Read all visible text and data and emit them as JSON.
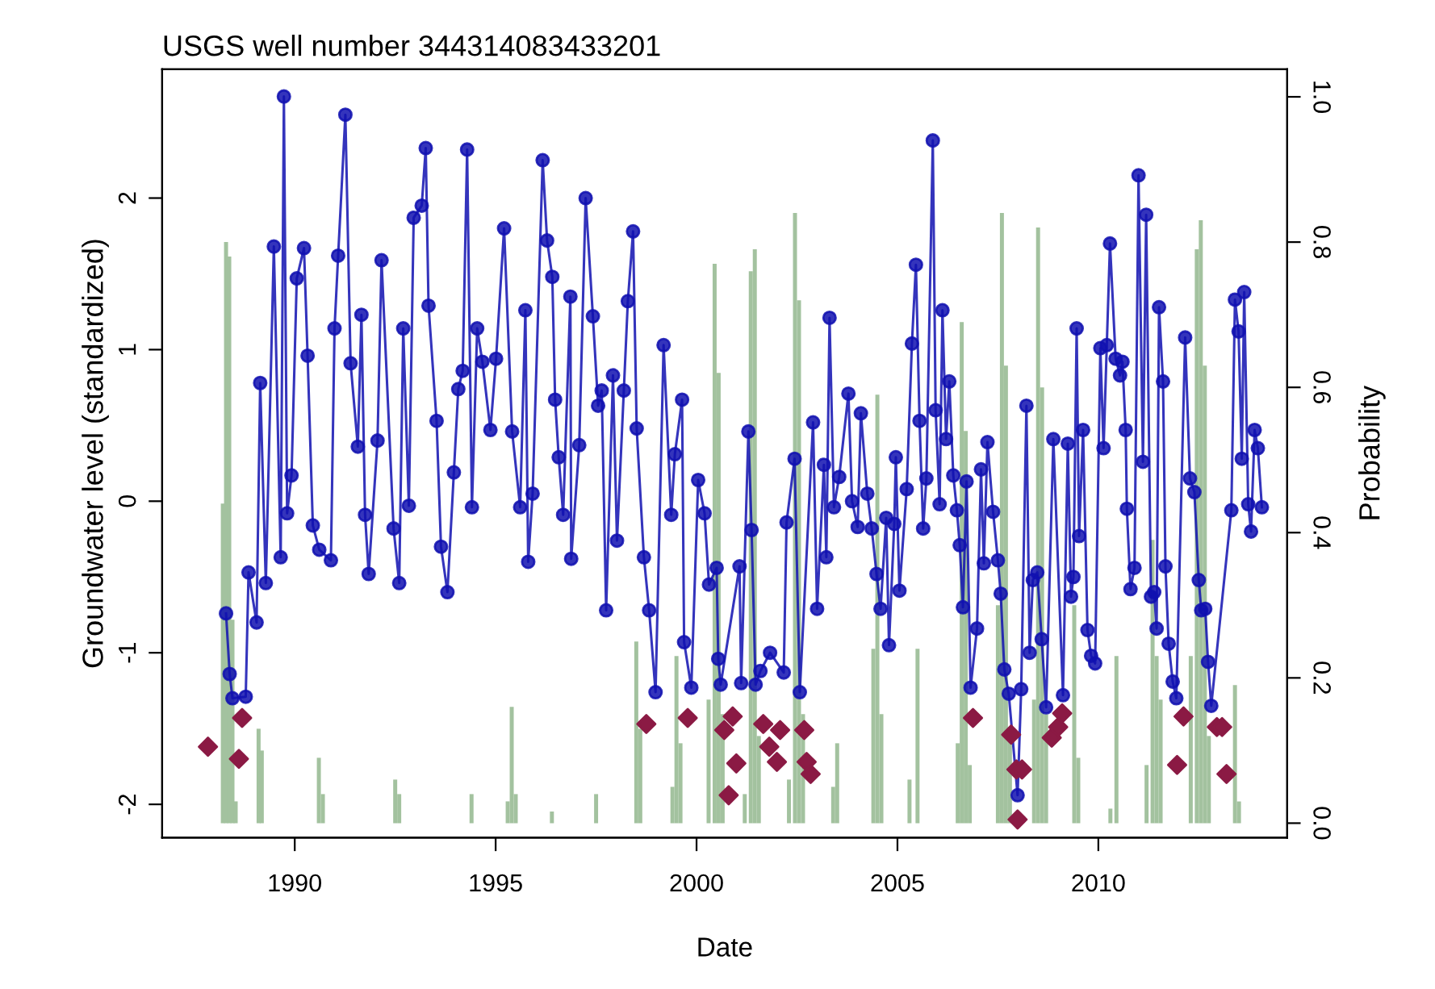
{
  "chart_data": {
    "type": "line",
    "title": "USGS well number 344314083433201",
    "xlabel": "Date",
    "ylabel": "Groundwater level (standardized)",
    "y2label": "Probability",
    "xlim": [
      1986.7,
      2014.7
    ],
    "xticks": [
      1990,
      1995,
      2000,
      2005,
      2010
    ],
    "ylim": [
      -2.22,
      2.85
    ],
    "yticks": [
      -2,
      -1,
      0,
      1,
      2
    ],
    "y2lim": [
      -0.02,
      1.038
    ],
    "y2ticks": [
      {
        "value": 0,
        "label": "0.0"
      },
      0.2,
      0.4,
      0.6,
      0.8,
      {
        "value": 1,
        "label": "1.0"
      }
    ],
    "grid": false,
    "series": [
      {
        "type": "bar",
        "axis": "y2",
        "color": "#a3c29f",
        "x": [
          1988.21,
          1988.29,
          1988.37,
          1988.45,
          1988.53,
          1989.1,
          1989.18,
          1990.6,
          1990.7,
          1992.5,
          1992.6,
          1994.4,
          1995.3,
          1995.4,
          1995.5,
          1996.4,
          1997.5,
          1998.5,
          1998.6,
          1999.4,
          1999.5,
          1999.6,
          2000.3,
          2000.45,
          2000.55,
          2000.65,
          2001.2,
          2001.35,
          2001.45,
          2001.55,
          2002.3,
          2002.45,
          2002.55,
          2002.65,
          2003.4,
          2003.5,
          2004.4,
          2004.5,
          2004.6,
          2005.3,
          2005.5,
          2006.5,
          2006.6,
          2006.7,
          2006.8,
          2007.5,
          2007.6,
          2007.7,
          2007.8,
          2008.4,
          2008.5,
          2008.6,
          2008.7,
          2009.4,
          2009.5,
          2010.3,
          2010.45,
          2011.2,
          2011.35,
          2011.45,
          2011.55,
          2012.3,
          2012.45,
          2012.55,
          2012.65,
          2012.75,
          2013.4,
          2013.5
        ],
        "values": [
          0.44,
          0.8,
          0.78,
          0.28,
          0.03,
          0.13,
          0.1,
          0.09,
          0.04,
          0.06,
          0.04,
          0.04,
          0.03,
          0.16,
          0.04,
          0.016,
          0.04,
          0.25,
          0.13,
          0.05,
          0.23,
          0.11,
          0.17,
          0.77,
          0.62,
          0.15,
          0.04,
          0.76,
          0.79,
          0.12,
          0.06,
          0.84,
          0.72,
          0.15,
          0.05,
          0.11,
          0.24,
          0.59,
          0.15,
          0.06,
          0.24,
          0.11,
          0.69,
          0.54,
          0.08,
          0.3,
          0.84,
          0.63,
          0.12,
          0.17,
          0.82,
          0.6,
          0.15,
          0.3,
          0.09,
          0.02,
          0.23,
          0.08,
          0.39,
          0.23,
          0.17,
          0.23,
          0.79,
          0.83,
          0.63,
          0.12,
          0.19,
          0.03
        ]
      },
      {
        "color": "#1010b0",
        "marker": "circle",
        "line_style": "solid",
        "x": [
          1988.29,
          1988.38,
          1988.45,
          1988.78,
          1988.85,
          1989.05,
          1989.14,
          1989.28,
          1989.48,
          1989.65,
          1989.73,
          1989.81,
          1989.92,
          1990.05,
          1990.23,
          1990.32,
          1990.45,
          1990.61,
          1990.9,
          1990.99,
          1991.08,
          1991.26,
          1991.39,
          1991.57,
          1991.66,
          1991.75,
          1991.84,
          1992.06,
          1992.16,
          1992.46,
          1992.6,
          1992.7,
          1992.84,
          1992.96,
          1993.16,
          1993.26,
          1993.33,
          1993.53,
          1993.64,
          1993.8,
          1993.96,
          1994.07,
          1994.18,
          1994.29,
          1994.41,
          1994.54,
          1994.67,
          1994.87,
          1995.01,
          1995.21,
          1995.41,
          1995.61,
          1995.74,
          1995.81,
          1995.92,
          1996.17,
          1996.28,
          1996.41,
          1996.48,
          1996.57,
          1996.68,
          1996.86,
          1996.88,
          1997.08,
          1997.24,
          1997.42,
          1997.55,
          1997.64,
          1997.75,
          1997.92,
          1998.02,
          1998.19,
          1998.29,
          1998.42,
          1998.51,
          1998.69,
          1998.82,
          1998.98,
          1999.18,
          1999.37,
          1999.46,
          1999.64,
          1999.69,
          1999.87,
          2000.04,
          2000.2,
          2000.31,
          2000.5,
          2000.54,
          2000.6,
          2001.07,
          2001.11,
          2001.29,
          2001.37,
          2001.47,
          2001.59,
          2001.83,
          2002.17,
          2002.24,
          2002.44,
          2002.57,
          2002.9,
          2003.0,
          2003.17,
          2003.23,
          2003.31,
          2003.42,
          2003.55,
          2003.78,
          2003.87,
          2004.01,
          2004.09,
          2004.25,
          2004.36,
          2004.48,
          2004.58,
          2004.72,
          2004.79,
          2004.92,
          2004.96,
          2005.05,
          2005.23,
          2005.36,
          2005.46,
          2005.55,
          2005.64,
          2005.72,
          2005.88,
          2005.95,
          2006.05,
          2006.12,
          2006.21,
          2006.29,
          2006.39,
          2006.48,
          2006.55,
          2006.63,
          2006.72,
          2006.82,
          2006.98,
          2007.08,
          2007.15,
          2007.24,
          2007.38,
          2007.5,
          2007.57,
          2007.66,
          2007.77,
          2007.99,
          2008.08,
          2008.21,
          2008.29,
          2008.37,
          2008.48,
          2008.59,
          2008.7,
          2008.88,
          2009.12,
          2009.24,
          2009.32,
          2009.38,
          2009.46,
          2009.52,
          2009.62,
          2009.73,
          2009.82,
          2009.92,
          2010.05,
          2010.13,
          2010.21,
          2010.29,
          2010.43,
          2010.54,
          2010.6,
          2010.68,
          2010.71,
          2010.8,
          2010.9,
          2011.0,
          2011.11,
          2011.19,
          2011.31,
          2011.39,
          2011.45,
          2011.51,
          2011.61,
          2011.67,
          2011.75,
          2011.85,
          2011.94,
          2012.16,
          2012.28,
          2012.39,
          2012.5,
          2012.56,
          2012.66,
          2012.73,
          2012.81,
          2013.31,
          2013.4,
          2013.49,
          2013.57,
          2013.63,
          2013.73,
          2013.8,
          2013.89,
          2013.97,
          2014.07
        ],
        "values": [
          -0.74,
          -1.14,
          -1.3,
          -1.29,
          -0.47,
          -0.8,
          0.78,
          -0.54,
          1.68,
          -0.37,
          2.67,
          -0.08,
          0.17,
          1.47,
          1.67,
          0.96,
          -0.16,
          -0.32,
          -0.39,
          1.14,
          1.62,
          2.55,
          0.91,
          0.36,
          1.23,
          -0.09,
          -0.48,
          0.4,
          1.59,
          -0.18,
          -0.54,
          1.14,
          -0.03,
          1.87,
          1.95,
          2.33,
          1.29,
          0.53,
          -0.3,
          -0.6,
          0.19,
          0.74,
          0.86,
          2.32,
          -0.04,
          1.14,
          0.92,
          0.47,
          0.94,
          1.8,
          0.46,
          -0.04,
          1.26,
          -0.4,
          0.05,
          2.25,
          1.72,
          1.48,
          0.67,
          0.29,
          -0.09,
          1.35,
          -0.38,
          0.37,
          2.0,
          1.22,
          0.63,
          0.73,
          -0.72,
          0.83,
          -0.26,
          0.73,
          1.32,
          1.78,
          0.48,
          -0.37,
          -0.72,
          -1.26,
          1.03,
          -0.09,
          0.31,
          0.67,
          -0.93,
          -1.23,
          0.14,
          -0.08,
          -0.55,
          -0.44,
          -1.04,
          -1.21,
          -0.43,
          -1.2,
          0.46,
          -0.19,
          -1.21,
          -1.12,
          -1.0,
          -1.13,
          -0.14,
          0.28,
          -1.26,
          0.52,
          -0.71,
          0.24,
          -0.37,
          1.21,
          -0.04,
          0.16,
          0.71,
          0.0,
          -0.17,
          0.58,
          0.05,
          -0.18,
          -0.48,
          -0.71,
          -0.11,
          -0.95,
          -0.15,
          0.29,
          -0.59,
          0.08,
          1.04,
          1.56,
          0.53,
          -0.18,
          0.15,
          2.38,
          0.6,
          -0.02,
          1.26,
          0.41,
          0.79,
          0.17,
          -0.06,
          -0.29,
          -0.7,
          0.13,
          -1.23,
          -0.84,
          0.21,
          -0.41,
          0.39,
          -0.07,
          -0.39,
          -0.61,
          -1.11,
          -1.27,
          -1.94,
          -1.24,
          0.63,
          -1.0,
          -0.52,
          -0.47,
          -0.91,
          -1.36,
          0.41,
          -1.28,
          0.38,
          -0.63,
          -0.5,
          1.14,
          -0.23,
          0.47,
          -0.85,
          -1.02,
          -1.07,
          1.01,
          0.35,
          1.03,
          1.7,
          0.94,
          0.83,
          0.92,
          0.47,
          -0.05,
          -0.58,
          -0.44,
          2.15,
          0.26,
          1.89,
          -0.63,
          -0.6,
          -0.84,
          1.28,
          0.79,
          -0.43,
          -0.94,
          -1.19,
          -1.3,
          1.08,
          0.15,
          0.06,
          -0.52,
          -0.72,
          -0.71,
          -1.06,
          -1.35,
          -0.06,
          1.33,
          1.12,
          0.28,
          1.38,
          -0.02,
          -0.2,
          0.47,
          0.35,
          -0.04
        ]
      },
      {
        "type": "scatter",
        "color": "#8b1a44",
        "marker": "diamond",
        "x": [
          1987.84,
          1988.61,
          1988.69,
          1998.75,
          1999.78,
          2000.69,
          2000.8,
          2000.9,
          2000.99,
          2001.66,
          2001.81,
          2002.0,
          2002.08,
          2002.68,
          2002.74,
          2002.84,
          2006.88,
          2007.83,
          2007.96,
          2007.99,
          2008.1,
          2008.84,
          2009.0,
          2009.1,
          2011.96,
          2012.12,
          2012.95,
          2013.08,
          2013.19
        ],
        "values": [
          -1.62,
          -1.7,
          -1.43,
          -1.47,
          -1.43,
          -1.51,
          -1.94,
          -1.42,
          -1.73,
          -1.47,
          -1.62,
          -1.72,
          -1.51,
          -1.51,
          -1.72,
          -1.8,
          -1.43,
          -1.54,
          -1.77,
          -2.1,
          -1.77,
          -1.56,
          -1.49,
          -1.4,
          -1.74,
          -1.42,
          -1.49,
          -1.49,
          -1.8
        ]
      }
    ]
  }
}
